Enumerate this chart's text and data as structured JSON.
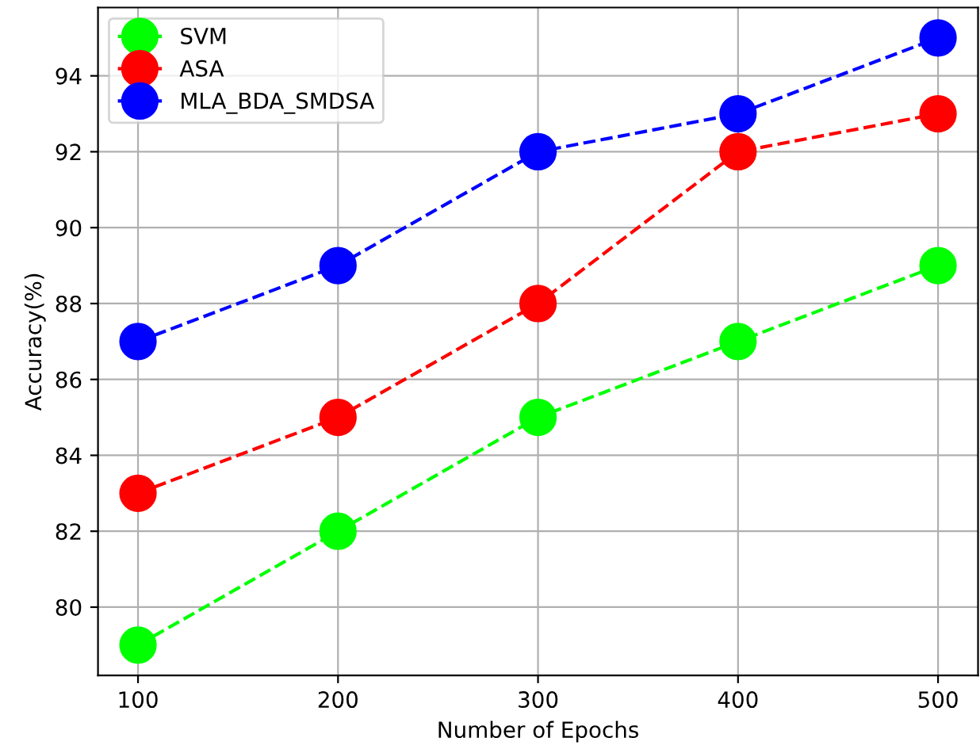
{
  "chart_data": {
    "type": "line",
    "xlabel": "Number of Epochs",
    "ylabel": "Accuracy(%)",
    "x": [
      100,
      200,
      300,
      400,
      500
    ],
    "series": [
      {
        "name": "SVM",
        "color": "#00ff00",
        "values": [
          79,
          82,
          85,
          87,
          89
        ]
      },
      {
        "name": "ASA",
        "color": "#ff0000",
        "values": [
          83,
          85,
          88,
          92,
          93
        ]
      },
      {
        "name": "MLA_BDA_SMDSA",
        "color": "#0000ff",
        "values": [
          87,
          89,
          92,
          93,
          95
        ]
      }
    ],
    "xlim": [
      80,
      520
    ],
    "xticks": [
      100,
      200,
      300,
      400,
      500
    ],
    "ylim": [
      78.2,
      95.8
    ],
    "yticks": [
      80,
      82,
      84,
      86,
      88,
      90,
      92,
      94
    ],
    "grid": true,
    "legend": "top left",
    "marker": "circle",
    "line_style": "dashed"
  }
}
